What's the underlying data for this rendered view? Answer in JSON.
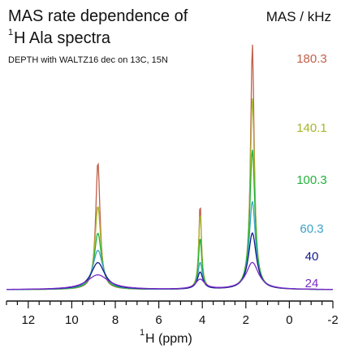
{
  "title": {
    "line1": "MAS rate dependence of",
    "line2_sup": "1",
    "line2_text": "H Ala spectra"
  },
  "subtitle": "DEPTH with WALTZ16 dec on 13C, 15N",
  "legend_title": "MAS / kHz",
  "colors": {
    "180.3": "#c0604a",
    "140.1": "#a8b52a",
    "100.3": "#22b23a",
    "60.3": "#3aa3c8",
    "40": "#141a8a",
    "24": "#7a2ac8"
  },
  "xlabel_sup": "1",
  "xlabel_text": "H (ppm)",
  "chart_data": {
    "type": "line",
    "title": "MAS rate dependence of 1H Ala spectra",
    "subtitle": "DEPTH with WALTZ16 dec on 13C, 15N",
    "xlabel": "1H (ppm)",
    "ylabel": "",
    "xlim": [
      13,
      -2
    ],
    "x_reversed": true,
    "x_major_ticks": [
      12,
      10,
      8,
      6,
      4,
      2,
      0,
      -2
    ],
    "x_minor_step": 0.5,
    "legend_title": "MAS / kHz",
    "grid": false,
    "peaks_ppm": [
      8.8,
      4.1,
      1.7
    ],
    "series": [
      {
        "name": "180.3",
        "color": "#c0604a",
        "peaks": [
          {
            "x": 8.8,
            "height": 0.52,
            "width": 0.12
          },
          {
            "x": 4.1,
            "height": 0.35,
            "width": 0.07
          },
          {
            "x": 1.7,
            "height": 1.0,
            "width": 0.1
          }
        ]
      },
      {
        "name": "140.1",
        "color": "#a8b52a",
        "peaks": [
          {
            "x": 8.8,
            "height": 0.34,
            "width": 0.16
          },
          {
            "x": 4.1,
            "height": 0.31,
            "width": 0.08
          },
          {
            "x": 1.7,
            "height": 0.78,
            "width": 0.12
          }
        ]
      },
      {
        "name": "100.3",
        "color": "#22b23a",
        "peaks": [
          {
            "x": 8.8,
            "height": 0.23,
            "width": 0.2
          },
          {
            "x": 4.1,
            "height": 0.21,
            "width": 0.09
          },
          {
            "x": 1.7,
            "height": 0.57,
            "width": 0.14
          }
        ]
      },
      {
        "name": "60.3",
        "color": "#3aa3c8",
        "peaks": [
          {
            "x": 8.8,
            "height": 0.16,
            "width": 0.28
          },
          {
            "x": 4.1,
            "height": 0.11,
            "width": 0.12
          },
          {
            "x": 1.7,
            "height": 0.36,
            "width": 0.17
          }
        ]
      },
      {
        "name": "40",
        "color": "#141a8a",
        "peaks": [
          {
            "x": 8.8,
            "height": 0.11,
            "width": 0.38
          },
          {
            "x": 4.1,
            "height": 0.07,
            "width": 0.15
          },
          {
            "x": 1.7,
            "height": 0.23,
            "width": 0.22
          }
        ]
      },
      {
        "name": "24",
        "color": "#7a2ac8",
        "peaks": [
          {
            "x": 8.8,
            "height": 0.06,
            "width": 0.6
          },
          {
            "x": 4.1,
            "height": 0.04,
            "width": 0.25
          },
          {
            "x": 1.7,
            "height": 0.11,
            "width": 0.35
          }
        ]
      }
    ]
  }
}
